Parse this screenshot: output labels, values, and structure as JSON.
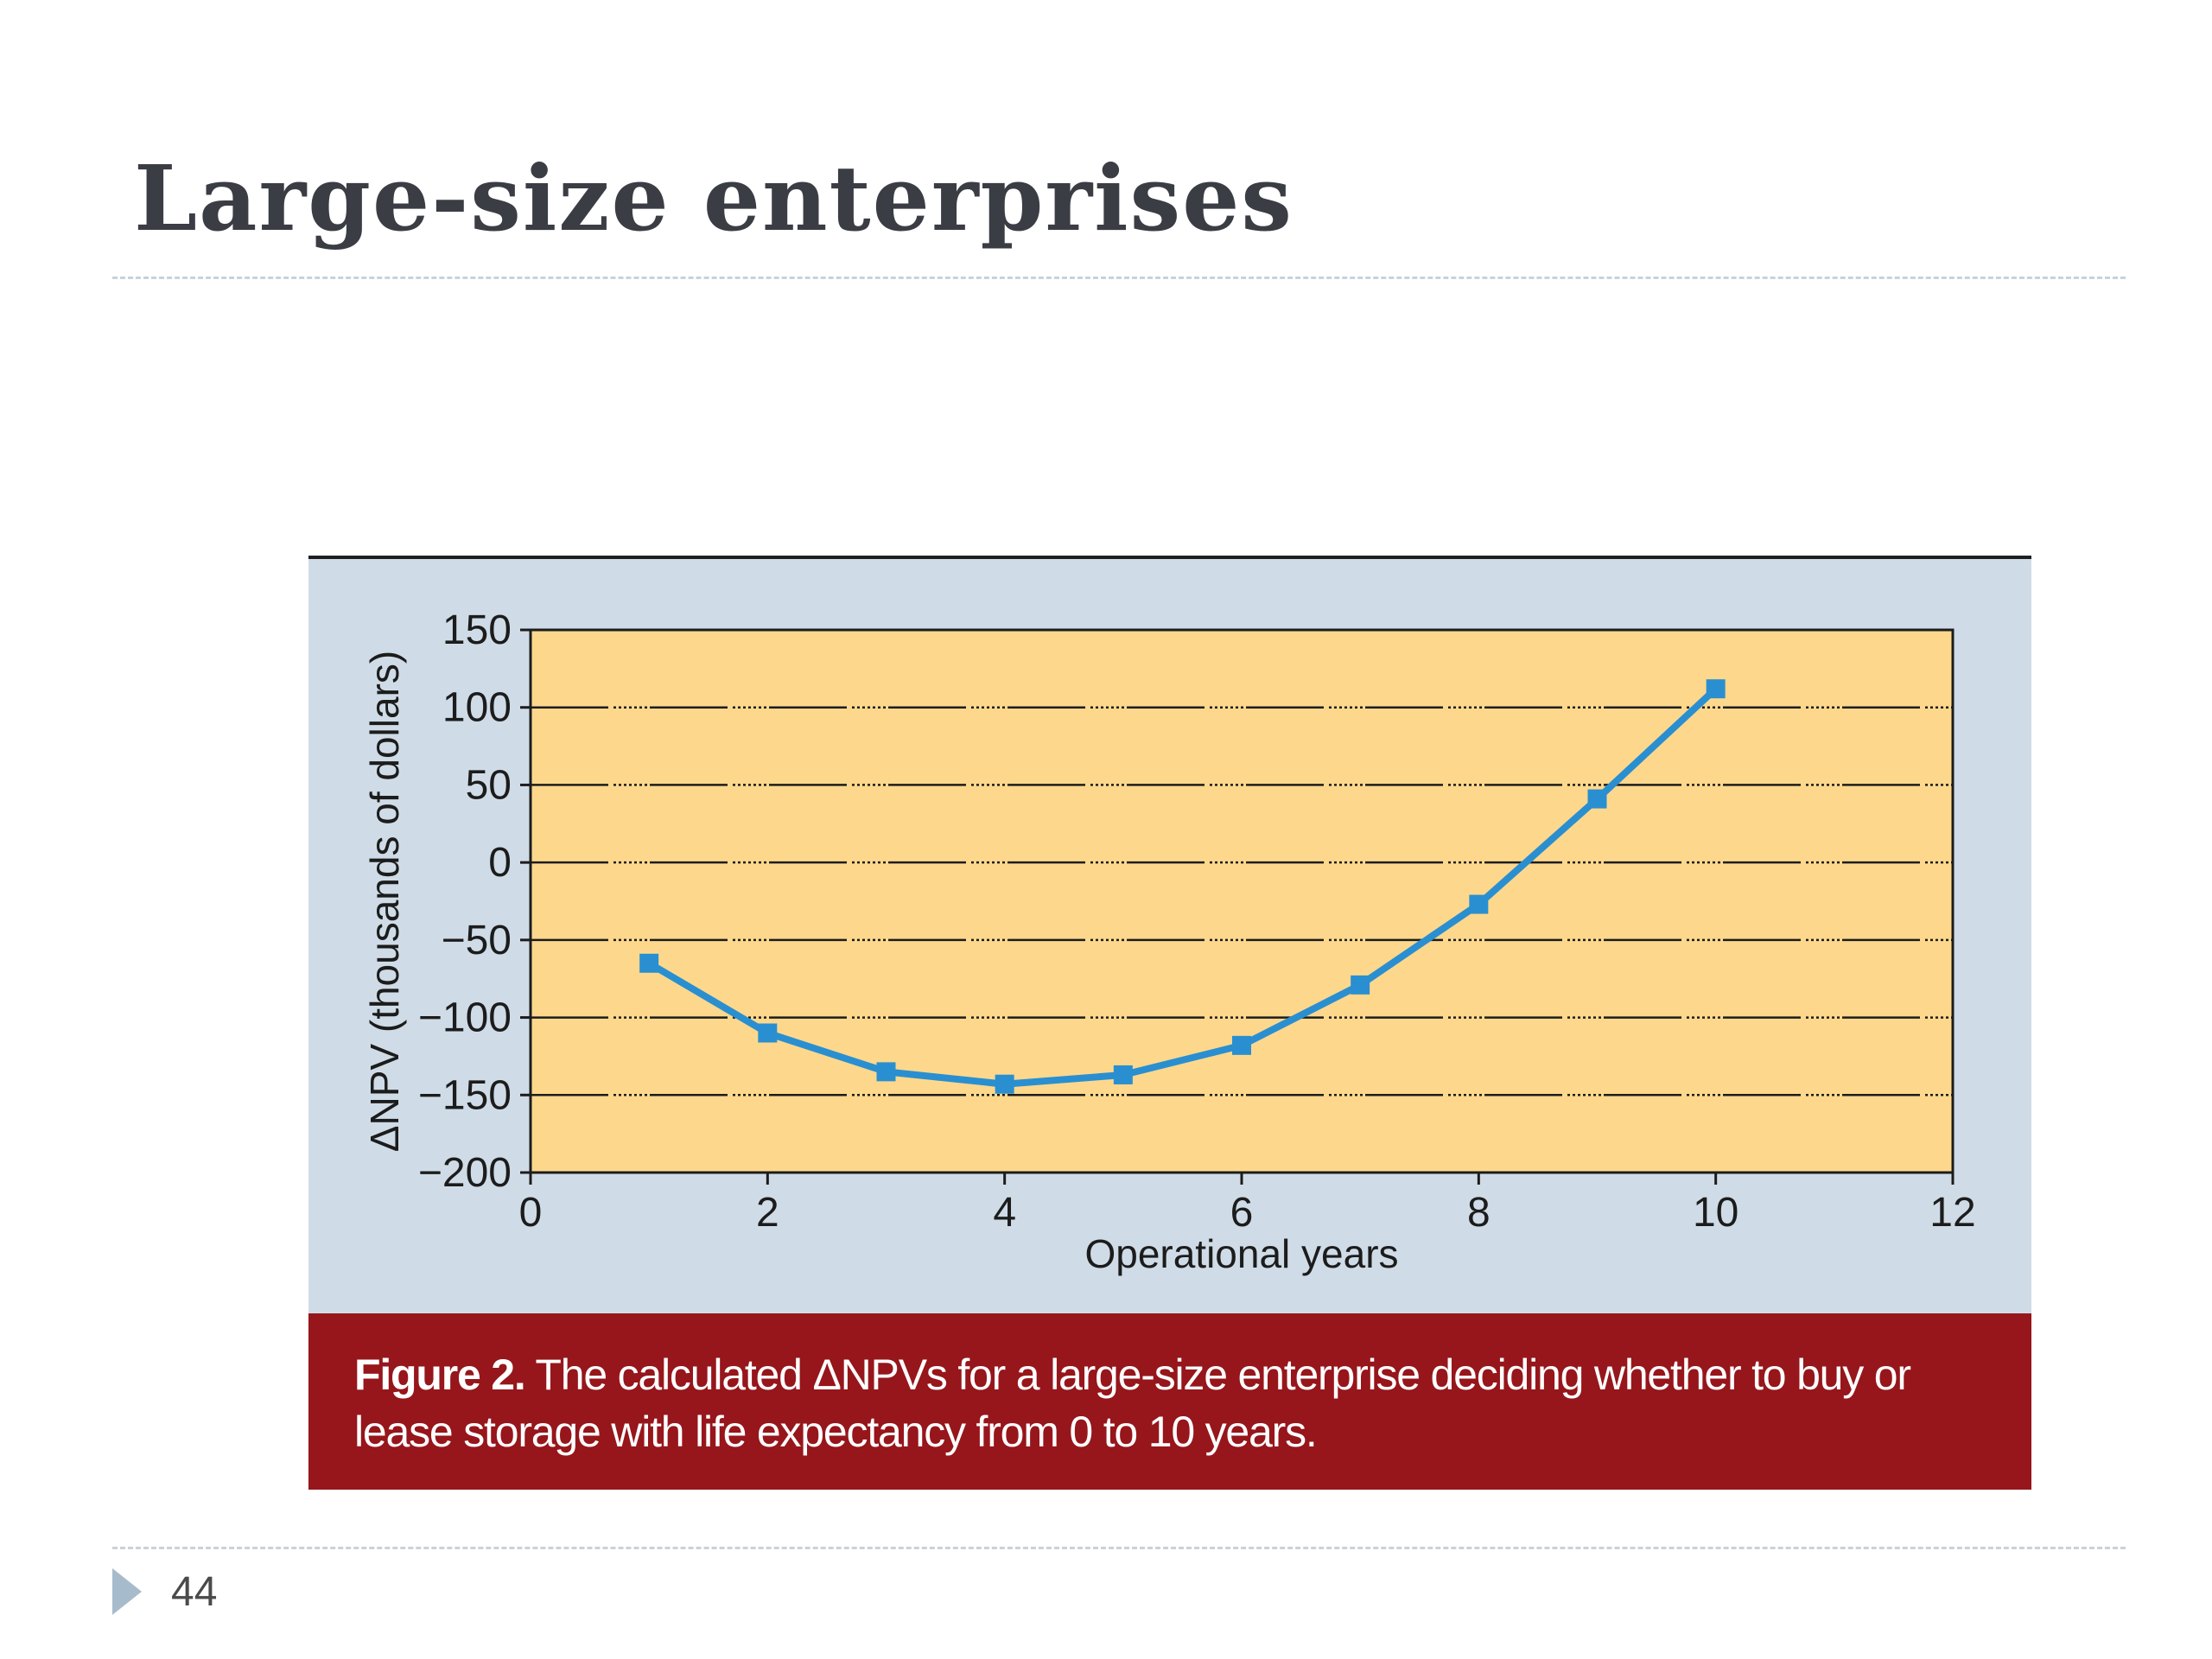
{
  "slide": {
    "title": "Large-size enterprises",
    "page_number": "44"
  },
  "figure": {
    "caption_label": "Figure 2.",
    "caption_text": " The calculated ΔNPVs for a large-size enterprise deciding whether to buy or lease storage with life expectancy from 0 to 10 years."
  },
  "colors": {
    "plot_background": "#fdd88c",
    "panel_background": "#cfdce7",
    "caption_background": "#96161b",
    "series_line": "#2a8fd0",
    "title_text": "#3b3d45"
  },
  "icons": {
    "footer_bullet": "triangle-right-icon"
  },
  "chart_data": {
    "type": "line",
    "title": "",
    "xlabel": "Operational years",
    "ylabel": "ΔNPV (thousands of dollars)",
    "xlim": [
      0,
      12
    ],
    "ylim": [
      -200,
      150
    ],
    "x_ticks": [
      "0",
      "2",
      "4",
      "6",
      "8",
      "10",
      "12"
    ],
    "y_ticks": [
      "150",
      "100",
      "50",
      "0",
      "−50",
      "−100",
      "−150",
      "−200"
    ],
    "grid": true,
    "legend": "none",
    "series": [
      {
        "x": [
          1,
          2,
          3,
          4,
          5,
          6,
          7,
          8,
          9,
          10
        ],
        "y": [
          -65,
          -110,
          -135,
          -143,
          -137,
          -118,
          -79,
          -27,
          41,
          112
        ]
      }
    ]
  }
}
